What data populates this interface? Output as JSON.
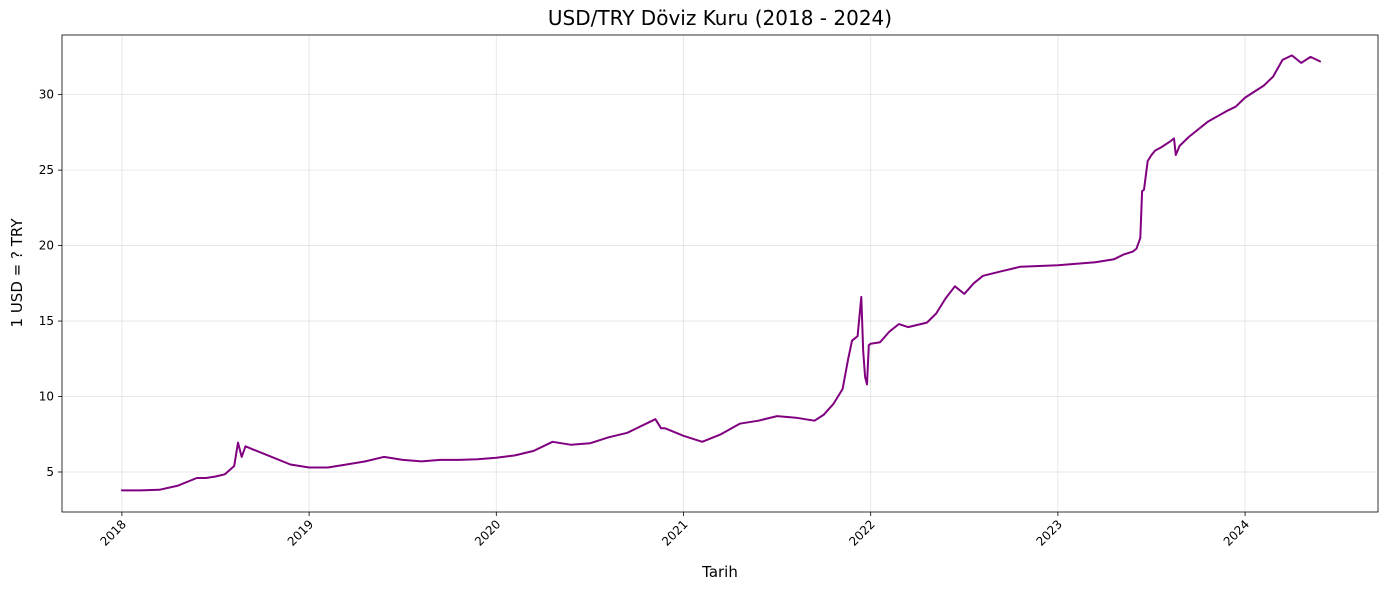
{
  "chart_data": {
    "type": "line",
    "title": "USD/TRY Döviz Kuru (2018 - 2024)",
    "xlabel": "Tarih",
    "ylabel": "1 USD = ? TRY",
    "xlim": [
      2017.68,
      2024.71
    ],
    "ylim": [
      2.35,
      33.95
    ],
    "x_ticks": [
      2018,
      2019,
      2020,
      2021,
      2022,
      2023,
      2024
    ],
    "x_tick_labels": [
      "2018",
      "2019",
      "2020",
      "2021",
      "2022",
      "2023",
      "2024"
    ],
    "y_ticks": [
      5,
      10,
      15,
      20,
      25,
      30
    ],
    "y_tick_labels": [
      "5",
      "10",
      "15",
      "20",
      "25",
      "30"
    ],
    "grid": true,
    "line_color": "#800080",
    "series": [
      {
        "x": [
          2018.0,
          2018.1,
          2018.2,
          2018.3,
          2018.4,
          2018.45,
          2018.5,
          2018.55,
          2018.6,
          2018.62,
          2018.64,
          2018.66,
          2018.7,
          2018.8,
          2018.9,
          2019.0,
          2019.1,
          2019.2,
          2019.3,
          2019.4,
          2019.5,
          2019.6,
          2019.7,
          2019.8,
          2019.9,
          2020.0,
          2020.1,
          2020.2,
          2020.3,
          2020.4,
          2020.5,
          2020.6,
          2020.7,
          2020.8,
          2020.85,
          2020.88,
          2020.9,
          2021.0,
          2021.1,
          2021.2,
          2021.3,
          2021.4,
          2021.5,
          2021.6,
          2021.7,
          2021.75,
          2021.8,
          2021.85,
          2021.88,
          2021.9,
          2021.93,
          2021.95,
          2021.96,
          2021.97,
          2021.98,
          2021.99,
          2022.0,
          2022.05,
          2022.1,
          2022.15,
          2022.2,
          2022.3,
          2022.35,
          2022.4,
          2022.45,
          2022.5,
          2022.55,
          2022.6,
          2022.7,
          2022.8,
          2022.9,
          2023.0,
          2023.1,
          2023.2,
          2023.3,
          2023.35,
          2023.4,
          2023.42,
          2023.44,
          2023.45,
          2023.46,
          2023.48,
          2023.5,
          2023.52,
          2023.55,
          2023.6,
          2023.62,
          2023.63,
          2023.65,
          2023.7,
          2023.8,
          2023.9,
          2023.95,
          2024.0,
          2024.05,
          2024.1,
          2024.15,
          2024.2,
          2024.25,
          2024.3,
          2024.35,
          2024.4
        ],
        "y": [
          3.78,
          3.78,
          3.82,
          4.1,
          4.6,
          4.6,
          4.7,
          4.85,
          5.4,
          6.95,
          6.0,
          6.7,
          6.5,
          6.0,
          5.5,
          5.3,
          5.3,
          5.5,
          5.7,
          6.0,
          5.8,
          5.7,
          5.8,
          5.8,
          5.85,
          5.95,
          6.1,
          6.4,
          7.0,
          6.8,
          6.9,
          7.3,
          7.6,
          8.2,
          8.5,
          7.9,
          7.9,
          7.4,
          7.0,
          7.5,
          8.2,
          8.4,
          8.7,
          8.6,
          8.4,
          8.8,
          9.5,
          10.5,
          12.5,
          13.7,
          14.0,
          16.6,
          13.0,
          11.3,
          10.8,
          13.4,
          13.5,
          13.6,
          14.3,
          14.8,
          14.6,
          14.9,
          15.5,
          16.5,
          17.3,
          16.8,
          17.5,
          18.0,
          18.3,
          18.6,
          18.65,
          18.7,
          18.8,
          18.9,
          19.1,
          19.4,
          19.6,
          19.8,
          20.5,
          23.6,
          23.7,
          25.6,
          26.0,
          26.3,
          26.5,
          26.9,
          27.1,
          26.0,
          26.6,
          27.2,
          28.2,
          28.9,
          29.2,
          29.8,
          30.2,
          30.6,
          31.2,
          32.3,
          32.6,
          32.1,
          32.5,
          32.2
        ]
      }
    ]
  }
}
